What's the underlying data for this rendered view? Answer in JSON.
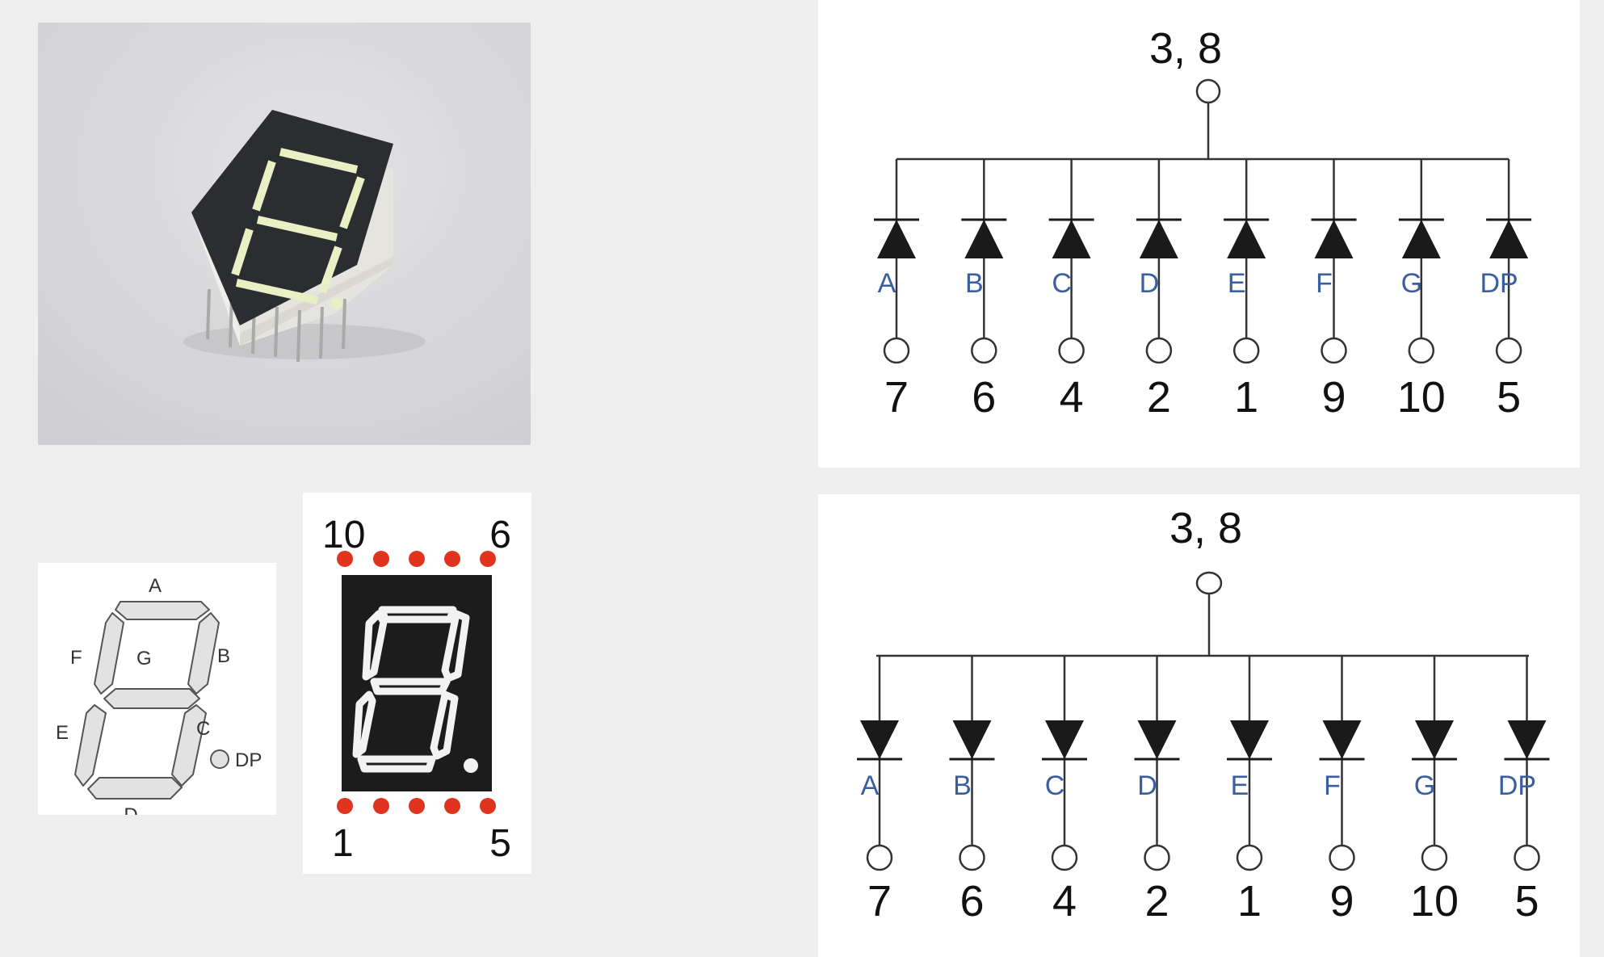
{
  "colors": {
    "page_bg": "#eeeeee",
    "photo_bg": "#d9d9db",
    "module_face": "#2b2d31",
    "module_body": "#e7e6e1",
    "segment_lit": "#e9f0c4",
    "pin_dot": "#e0341f",
    "line": "#2a2a2a",
    "segment_gray": "#cfcfcf"
  },
  "segment_map": {
    "labels": [
      "A",
      "B",
      "C",
      "D",
      "E",
      "F",
      "G",
      "DP"
    ]
  },
  "pinout": {
    "top_left": "10",
    "top_right": "6",
    "bottom_left": "1",
    "bottom_right": "5"
  },
  "common_anode": {
    "common_pin": "3, 8",
    "segments": [
      {
        "segment": "A",
        "pin": "7"
      },
      {
        "segment": "B",
        "pin": "6"
      },
      {
        "segment": "C",
        "pin": "4"
      },
      {
        "segment": "D",
        "pin": "2"
      },
      {
        "segment": "E",
        "pin": "1"
      },
      {
        "segment": "F",
        "pin": "9"
      },
      {
        "segment": "G",
        "pin": "10"
      },
      {
        "segment": "DP",
        "pin": "5"
      }
    ]
  },
  "common_cathode": {
    "common_pin": "3, 8",
    "segments": [
      {
        "segment": "A",
        "pin": "7"
      },
      {
        "segment": "B",
        "pin": "6"
      },
      {
        "segment": "C",
        "pin": "4"
      },
      {
        "segment": "D",
        "pin": "2"
      },
      {
        "segment": "E",
        "pin": "1"
      },
      {
        "segment": "F",
        "pin": "9"
      },
      {
        "segment": "G",
        "pin": "10"
      },
      {
        "segment": "DP",
        "pin": "5"
      }
    ]
  }
}
